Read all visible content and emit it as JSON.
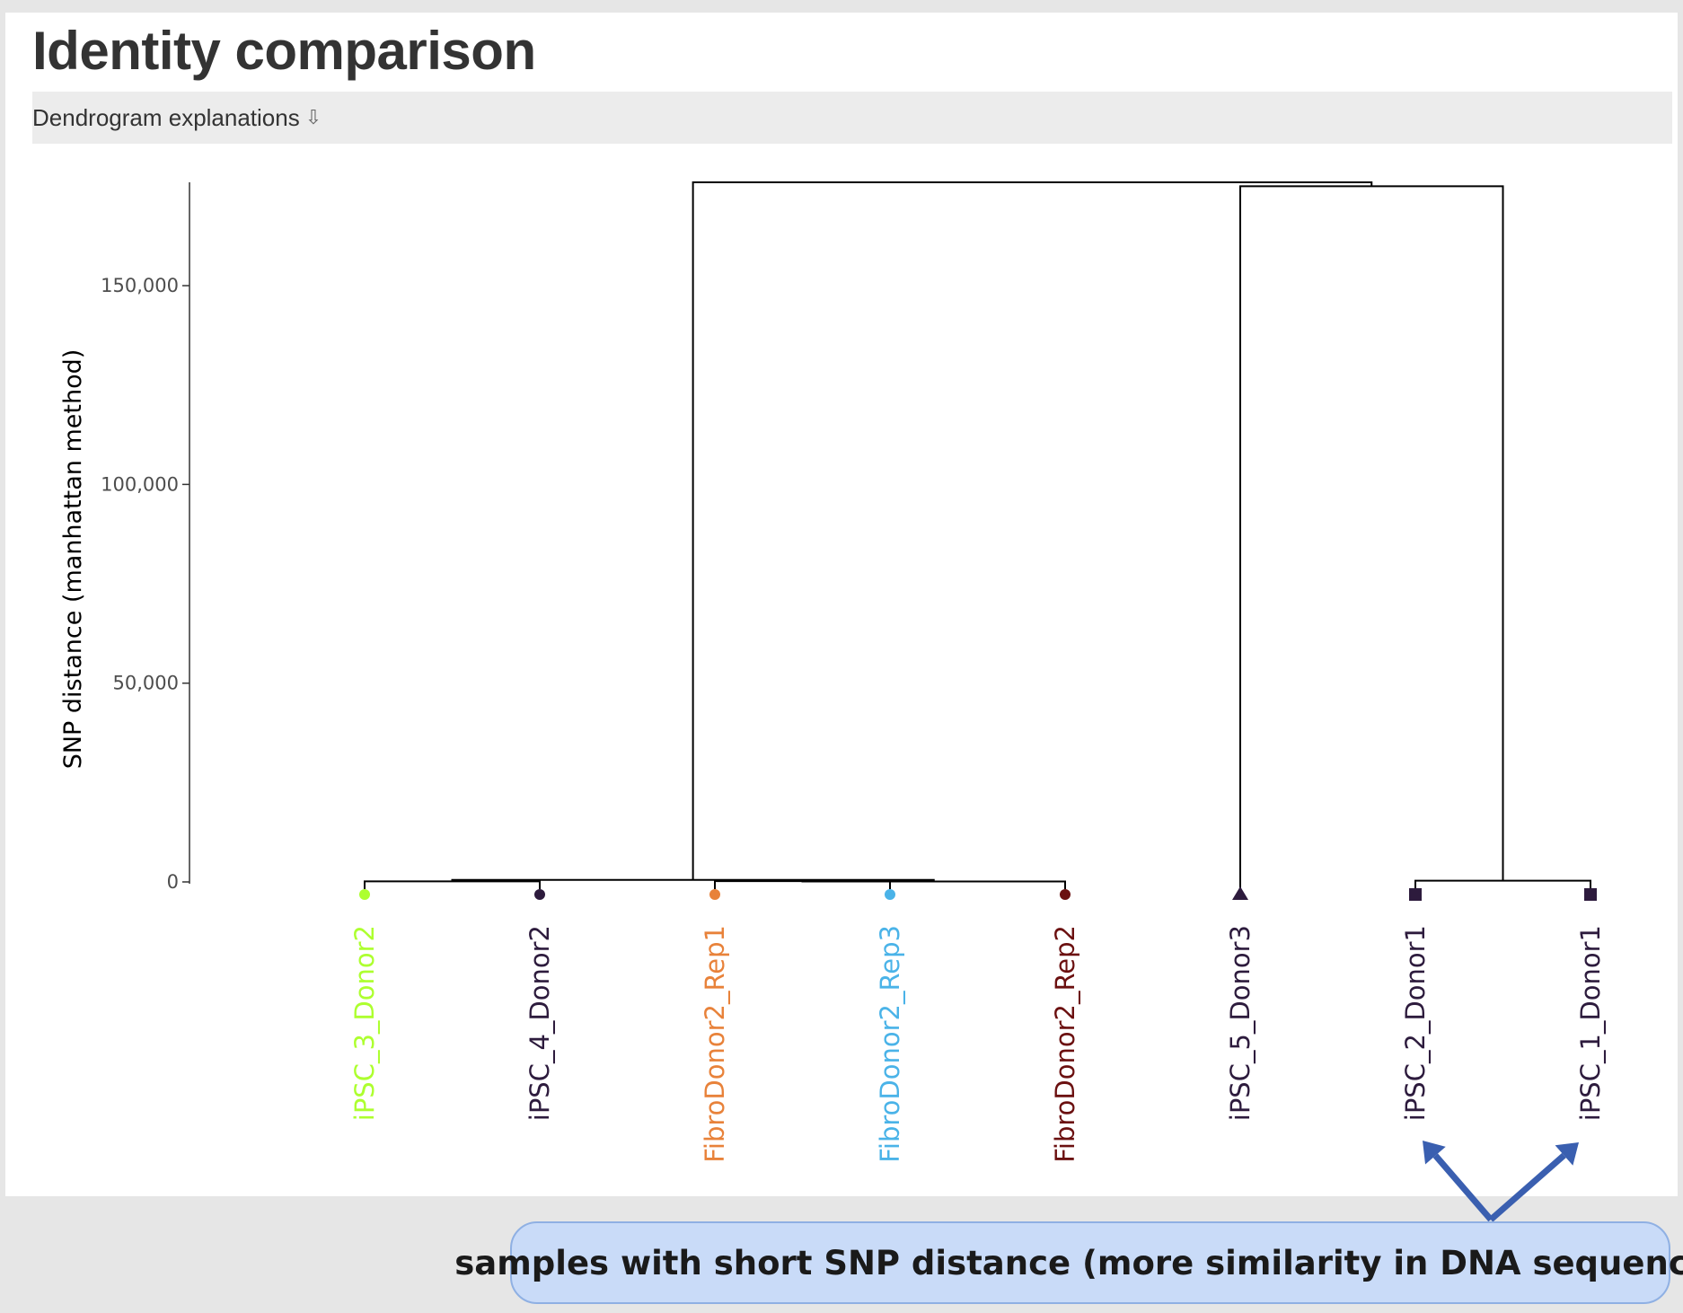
{
  "header": {
    "title": "Identity comparison",
    "collapse_label": "Dendrogram explanations",
    "collapse_arrow": "⇩"
  },
  "chart_data": {
    "type": "dendrogram",
    "ylabel": "SNP distance (manhattan method)",
    "ylim": [
      0,
      176000
    ],
    "yticks": [
      {
        "value": 0,
        "label": "0"
      },
      {
        "value": 50000,
        "label": "50,000"
      },
      {
        "value": 100000,
        "label": "100,000"
      },
      {
        "value": 150000,
        "label": "150,000"
      }
    ],
    "leaves": [
      {
        "label": "iPSC_3_Donor2",
        "color": "#adff2f",
        "shape": "circle"
      },
      {
        "label": "iPSC_4_Donor2",
        "color": "#2d1b3d",
        "shape": "circle"
      },
      {
        "label": "FibroDonor2_Rep1",
        "color": "#e8823a",
        "shape": "circle"
      },
      {
        "label": "FibroDonor2_Rep3",
        "color": "#4ab3e8",
        "shape": "circle"
      },
      {
        "label": "FibroDonor2_Rep2",
        "color": "#6b1010",
        "shape": "circle"
      },
      {
        "label": "iPSC_5_Donor3",
        "color": "#2d1b3d",
        "shape": "triangle"
      },
      {
        "label": "iPSC_2_Donor1",
        "color": "#2d1b3d",
        "shape": "square"
      },
      {
        "label": "iPSC_1_Donor1",
        "color": "#2d1b3d",
        "shape": "square"
      }
    ],
    "merges": [
      {
        "left": 0,
        "right": 1,
        "height": 150
      },
      {
        "left": 2,
        "right": 3,
        "height": 200
      },
      {
        "left": 9,
        "right": 4,
        "height": 100
      },
      {
        "left": 8,
        "right": 10,
        "height": 500
      },
      {
        "left": 6,
        "right": 7,
        "height": 300
      },
      {
        "left": 5,
        "right": 12,
        "height": 175000
      },
      {
        "left": 11,
        "right": 13,
        "height": 176000
      }
    ]
  },
  "annotation": {
    "callout_text": "samples with short SNP distance (more similarity in DNA sequence)",
    "arrow_color": "#3a5fb0"
  }
}
